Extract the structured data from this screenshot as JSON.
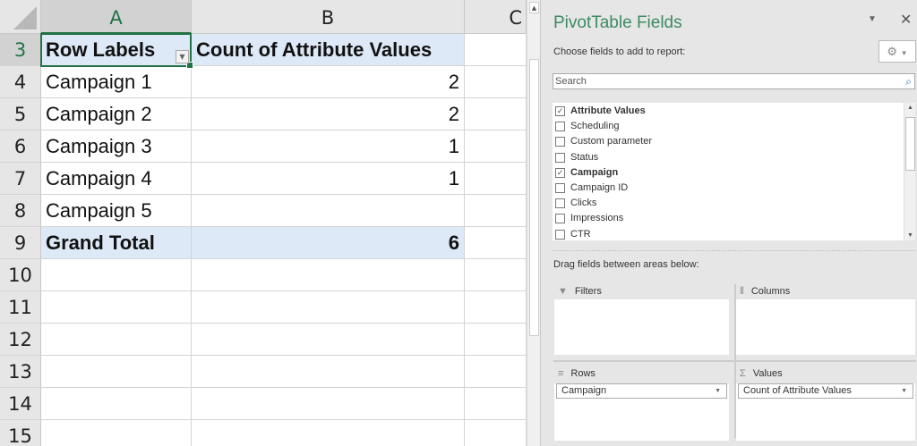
{
  "sheet": {
    "columns": [
      "A",
      "B",
      "C"
    ],
    "row_numbers": [
      "3",
      "4",
      "5",
      "6",
      "7",
      "8",
      "9",
      "10",
      "11",
      "12",
      "13",
      "14",
      "15"
    ],
    "pivot": {
      "header": {
        "row_labels": "Row Labels",
        "value_header": "Count of Attribute Values"
      },
      "rows": [
        {
          "label": "Campaign 1",
          "value": "2"
        },
        {
          "label": "Campaign 2",
          "value": "2"
        },
        {
          "label": "Campaign 3",
          "value": "1"
        },
        {
          "label": "Campaign 4",
          "value": "1"
        },
        {
          "label": "Campaign 5",
          "value": ""
        }
      ],
      "grand_total": {
        "label": "Grand Total",
        "value": "6"
      }
    }
  },
  "panel": {
    "title": "PivotTable Fields",
    "choose_label": "Choose fields to add to report:",
    "search_placeholder": "Search",
    "fields": [
      {
        "label": "Attribute Values",
        "checked": true
      },
      {
        "label": "Scheduling",
        "checked": false
      },
      {
        "label": "Custom parameter",
        "checked": false
      },
      {
        "label": "Status",
        "checked": false
      },
      {
        "label": "Campaign",
        "checked": true
      },
      {
        "label": "Campaign ID",
        "checked": false
      },
      {
        "label": "Clicks",
        "checked": false
      },
      {
        "label": "Impressions",
        "checked": false
      },
      {
        "label": "CTR",
        "checked": false
      }
    ],
    "drag_label": "Drag fields between areas below:",
    "areas": {
      "filters": {
        "label": "Filters"
      },
      "columns": {
        "label": "Columns"
      },
      "rows": {
        "label": "Rows",
        "item": "Campaign"
      },
      "values": {
        "label": "Values",
        "item": "Count of Attribute Values"
      }
    },
    "accent_color": "#3c8a62"
  }
}
